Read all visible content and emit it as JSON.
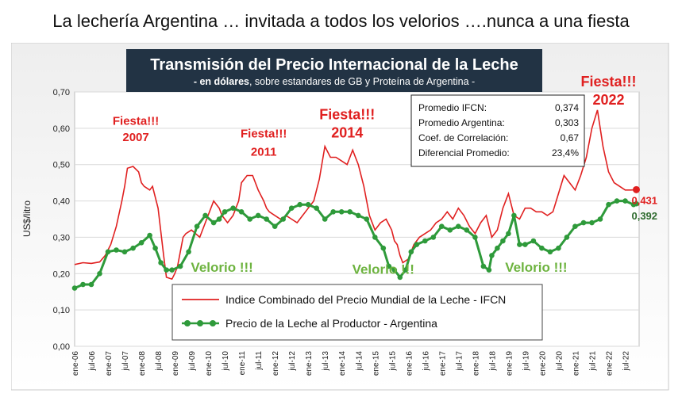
{
  "page_title": "La lechería Argentina … invitada a todos los velorios ….nunca  a una fiesta",
  "chart_data": {
    "type": "line",
    "title": "Transmisión del Precio Internacional de la Leche",
    "subtitle_bold": "- en dólares",
    "subtitle_rest": ", sobre estandares de GB y Proteína de  Argentina -",
    "ylabel": "US$/litro",
    "xlabel": "",
    "ylim": [
      0,
      0.7
    ],
    "yticks": [
      "0,00",
      "0,10",
      "0,20",
      "0,30",
      "0,40",
      "0,50",
      "0,60",
      "0,70"
    ],
    "x_tick_labels": [
      "ene-06",
      "jul-06",
      "ene-07",
      "jul-07",
      "ene-08",
      "jul-08",
      "ene-09",
      "jul-09",
      "ene-10",
      "jul-10",
      "ene-11",
      "jul-11",
      "ene-12",
      "jul-12",
      "ene-13",
      "jul-13",
      "ene-14",
      "jul-14",
      "ene-15",
      "jul-15",
      "ene-16",
      "jul-16",
      "ene-17",
      "jul-17",
      "ene-18",
      "jul-18",
      "ene-19",
      "jul-19",
      "ene-20",
      "jul-20",
      "ene-21",
      "jul-21",
      "ene-22",
      "jul-22"
    ],
    "grid": true,
    "series": [
      {
        "name": "Indice Combinado del Precio Mundial de la Leche - IFCN",
        "color": "#e02020",
        "x": [
          0,
          3,
          6,
          9,
          11,
          13,
          15,
          17,
          18,
          19,
          21,
          23,
          24,
          25,
          27,
          28,
          30,
          32,
          33,
          35,
          36,
          37,
          38,
          39,
          40,
          42,
          45,
          48,
          50,
          52,
          53,
          54,
          55,
          57,
          58,
          59,
          60,
          62,
          64,
          66,
          68,
          69,
          70,
          72,
          74,
          76,
          78,
          80,
          82,
          84,
          86,
          88,
          90,
          92,
          94,
          96,
          98,
          99,
          100,
          101,
          102,
          103,
          104,
          105,
          106,
          108,
          110,
          112,
          114,
          115,
          116,
          117,
          118,
          120,
          122,
          124,
          126,
          128,
          130,
          132,
          134,
          136,
          138,
          140,
          142,
          144,
          146,
          148,
          150,
          152,
          154,
          156,
          158,
          160,
          162,
          164,
          166,
          168,
          170,
          172,
          174,
          176,
          178,
          180,
          182,
          184,
          186,
          188,
          190,
          192,
          194,
          196,
          198,
          200,
          202
        ],
        "values": [
          0.225,
          0.23,
          0.228,
          0.232,
          0.25,
          0.28,
          0.33,
          0.4,
          0.44,
          0.49,
          0.495,
          0.48,
          0.45,
          0.44,
          0.43,
          0.44,
          0.38,
          0.25,
          0.19,
          0.185,
          0.2,
          0.22,
          0.26,
          0.3,
          0.31,
          0.32,
          0.3,
          0.36,
          0.4,
          0.38,
          0.36,
          0.35,
          0.34,
          0.36,
          0.38,
          0.4,
          0.45,
          0.47,
          0.47,
          0.43,
          0.4,
          0.38,
          0.37,
          0.36,
          0.35,
          0.36,
          0.35,
          0.34,
          0.36,
          0.38,
          0.4,
          0.46,
          0.55,
          0.52,
          0.52,
          0.51,
          0.5,
          0.52,
          0.54,
          0.52,
          0.5,
          0.47,
          0.44,
          0.4,
          0.36,
          0.32,
          0.34,
          0.35,
          0.32,
          0.29,
          0.28,
          0.25,
          0.23,
          0.24,
          0.28,
          0.3,
          0.31,
          0.32,
          0.34,
          0.35,
          0.37,
          0.35,
          0.38,
          0.36,
          0.33,
          0.31,
          0.34,
          0.36,
          0.3,
          0.32,
          0.38,
          0.42,
          0.36,
          0.35,
          0.38,
          0.38,
          0.37,
          0.37,
          0.36,
          0.37,
          0.42,
          0.47,
          0.45,
          0.43,
          0.47,
          0.52,
          0.6,
          0.65,
          0.55,
          0.48,
          0.45,
          0.44,
          0.43,
          0.43,
          0.431
        ],
        "end_label": "0,431"
      },
      {
        "name": "Precio de la Leche al Productor - Argentina",
        "color": "#2e9a3a",
        "x": [
          0,
          3,
          6,
          9,
          12,
          15,
          18,
          21,
          24,
          27,
          29,
          31,
          33,
          35,
          38,
          41,
          44,
          47,
          50,
          52,
          54,
          57,
          60,
          63,
          66,
          69,
          72,
          75,
          78,
          81,
          84,
          87,
          90,
          93,
          96,
          99,
          102,
          105,
          108,
          111,
          113,
          115,
          117,
          119,
          121,
          123,
          126,
          129,
          132,
          135,
          138,
          141,
          144,
          147,
          149,
          150,
          152,
          154,
          156,
          158,
          160,
          162,
          165,
          168,
          171,
          174,
          177,
          180,
          183,
          186,
          189,
          192,
          195,
          198,
          201,
          202
        ],
        "values": [
          0.16,
          0.17,
          0.17,
          0.2,
          0.26,
          0.265,
          0.26,
          0.27,
          0.285,
          0.305,
          0.27,
          0.23,
          0.21,
          0.21,
          0.22,
          0.26,
          0.33,
          0.36,
          0.34,
          0.35,
          0.37,
          0.38,
          0.37,
          0.35,
          0.36,
          0.35,
          0.33,
          0.35,
          0.38,
          0.39,
          0.39,
          0.38,
          0.35,
          0.37,
          0.37,
          0.37,
          0.36,
          0.35,
          0.3,
          0.27,
          0.22,
          0.21,
          0.19,
          0.21,
          0.26,
          0.28,
          0.29,
          0.3,
          0.33,
          0.32,
          0.33,
          0.32,
          0.3,
          0.22,
          0.21,
          0.25,
          0.27,
          0.29,
          0.31,
          0.36,
          0.28,
          0.28,
          0.29,
          0.27,
          0.26,
          0.27,
          0.3,
          0.33,
          0.34,
          0.34,
          0.35,
          0.39,
          0.4,
          0.4,
          0.39,
          0.392
        ],
        "end_label": "0,392"
      }
    ],
    "stats_box": [
      {
        "label": "Promedio IFCN:",
        "value": "0,374"
      },
      {
        "label": "Promedio Argentina:",
        "value": "0,303"
      },
      {
        "label": "Coef. de Correlación:",
        "value": "0,67"
      },
      {
        "label": "Diferencial Promedio:",
        "value": "23,4%"
      }
    ],
    "annotations": [
      {
        "text": "Fiesta!!!",
        "x": 22,
        "y": 0.61,
        "color": "#e02020",
        "size": 15
      },
      {
        "text": "2007",
        "x": 22,
        "y": 0.565,
        "color": "#e02020",
        "size": 15
      },
      {
        "text": "Fiesta!!!",
        "x": 68,
        "y": 0.575,
        "color": "#e02020",
        "size": 15
      },
      {
        "text": "2011",
        "x": 68,
        "y": 0.525,
        "color": "#e02020",
        "size": 15
      },
      {
        "text": "Fiesta!!!",
        "x": 98,
        "y": 0.625,
        "color": "#e02020",
        "size": 18
      },
      {
        "text": "2014",
        "x": 98,
        "y": 0.575,
        "color": "#e02020",
        "size": 18
      },
      {
        "text": "Fiesta!!!",
        "x": 192,
        "y": 0.715,
        "color": "#e02020",
        "size": 18
      },
      {
        "text": "2022",
        "x": 192,
        "y": 0.665,
        "color": "#e02020",
        "size": 18
      },
      {
        "text": "Velorio !!!",
        "x": 53,
        "y": 0.205,
        "color": "#6db33f",
        "size": 17
      },
      {
        "text": "Velorio !!!",
        "x": 111,
        "y": 0.2,
        "color": "#6db33f",
        "size": 17
      },
      {
        "text": "Velorio !!!",
        "x": 166,
        "y": 0.205,
        "color": "#6db33f",
        "size": 17
      }
    ],
    "legend_position": "bottom-left"
  }
}
